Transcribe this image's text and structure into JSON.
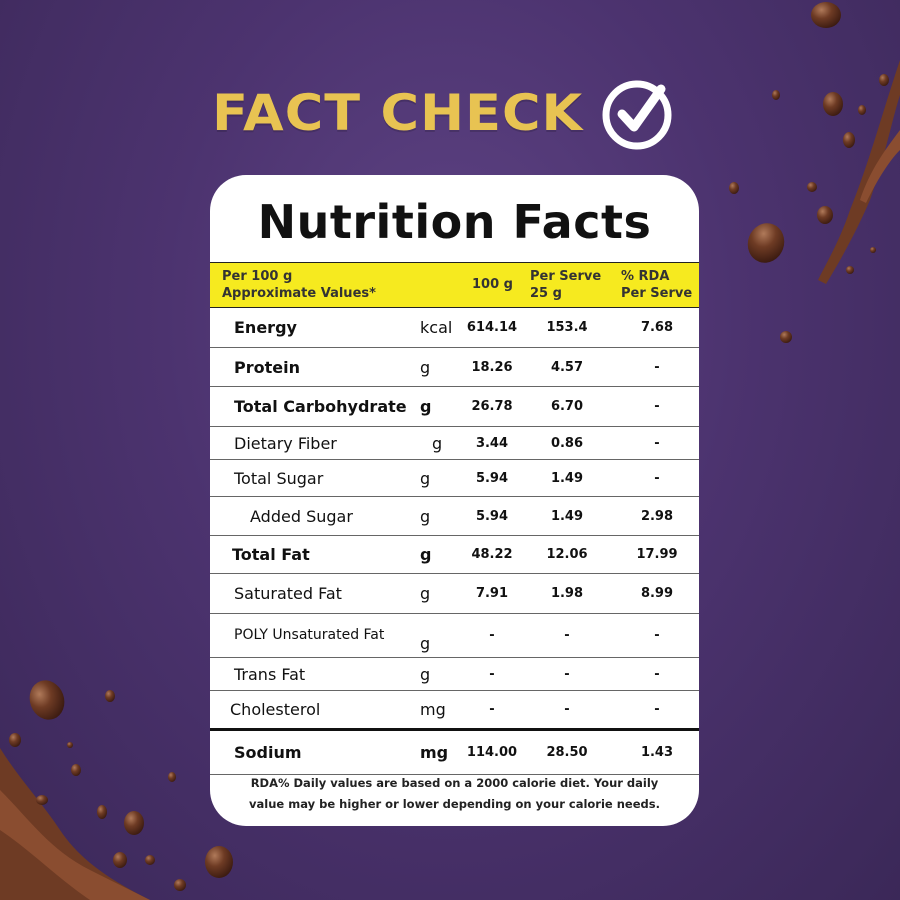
{
  "header": {
    "title": "FACT CHECK",
    "check_icon": "check-circle-icon"
  },
  "colors": {
    "background": "#4c336f",
    "title": "#e8c352",
    "header_band": "#f6ea1f",
    "card": "#ffffff",
    "chocolate": "#6b3a26"
  },
  "panel": {
    "title": "Nutrition Facts",
    "header": {
      "basis_line1": "Per 100 g",
      "basis_line2": "Approximate Values*",
      "col_100g": "100 g",
      "col_serve_line1": "Per Serve",
      "col_serve_line2": "25 g",
      "col_rda_line1": "% RDA",
      "col_rda_line2": "Per Serve"
    },
    "rows": [
      {
        "name": "Energy",
        "unit": "kcal",
        "per100": "614.14",
        "perServe": "153.4",
        "rda": "7.68"
      },
      {
        "name": "Protein",
        "unit": "g",
        "per100": "18.26",
        "perServe": "4.57",
        "rda": "-"
      },
      {
        "name": "Total Carbohydrate",
        "unit": "g",
        "per100": "26.78",
        "perServe": "6.70",
        "rda": "-"
      },
      {
        "name": "Dietary Fiber",
        "unit": "g",
        "per100": "3.44",
        "perServe": "0.86",
        "rda": "-"
      },
      {
        "name": "Total Sugar",
        "unit": "g",
        "per100": "5.94",
        "perServe": "1.49",
        "rda": "-"
      },
      {
        "name": "Added Sugar",
        "unit": "g",
        "per100": "5.94",
        "perServe": "1.49",
        "rda": "2.98"
      },
      {
        "name": "Total Fat",
        "unit": "g",
        "per100": "48.22",
        "perServe": "12.06",
        "rda": "17.99"
      },
      {
        "name": "Saturated Fat",
        "unit": "g",
        "per100": "7.91",
        "perServe": "1.98",
        "rda": "8.99"
      },
      {
        "name": "POLY Unsaturated Fat",
        "unit": "g",
        "per100": "-",
        "perServe": "-",
        "rda": "-"
      },
      {
        "name": "Trans Fat",
        "unit": "g",
        "per100": "-",
        "perServe": "-",
        "rda": "-"
      },
      {
        "name": "Cholesterol",
        "unit": "mg",
        "per100": "-",
        "perServe": "-",
        "rda": "-"
      },
      {
        "name": "Sodium",
        "unit": "mg",
        "per100": "114.00",
        "perServe": "28.50",
        "rda": "1.43"
      }
    ],
    "footnote_line1": "RDA% Daily values are based on a 2000 calorie diet. Your daily",
    "footnote_line2": "value may be higher or lower depending on your calorie needs."
  }
}
